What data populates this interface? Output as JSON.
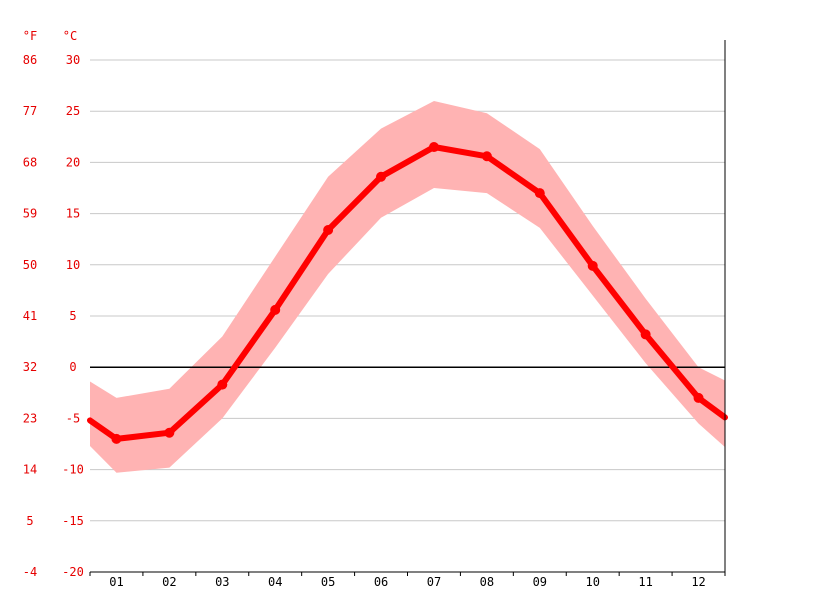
{
  "chart_data": {
    "type": "line",
    "title": "",
    "xlabel": "",
    "ylabel_left": "°F",
    "ylabel_right": "°C",
    "categories": [
      "01",
      "02",
      "03",
      "04",
      "05",
      "06",
      "07",
      "08",
      "09",
      "10",
      "11",
      "12"
    ],
    "ylim": [
      -20,
      30
    ],
    "y_ticks_c": [
      "30",
      "25",
      "20",
      "15",
      "10",
      "5",
      "0",
      "-5",
      "-10",
      "-15",
      "-20"
    ],
    "y_ticks_f": [
      "86",
      "77",
      "68",
      "59",
      "50",
      "41",
      "32",
      "23",
      "14",
      "5",
      "-4"
    ],
    "grid": true,
    "legend": "none",
    "series": [
      {
        "values": [
          -7.0,
          -6.4,
          -1.7,
          5.6,
          13.4,
          18.6,
          21.5,
          20.6,
          17.0,
          9.9,
          3.2,
          -3.0
        ]
      }
    ],
    "band_upper": [
      -3.0,
      -2.1,
      3.0,
      10.8,
      18.6,
      23.3,
      26.0,
      24.8,
      21.3,
      13.8,
      6.7,
      0.0
    ],
    "band_lower": [
      -10.3,
      -9.8,
      -5.0,
      1.9,
      9.1,
      14.6,
      17.5,
      17.0,
      13.6,
      7.0,
      0.4,
      -5.5
    ],
    "edge_left": {
      "avg": -5.2,
      "upper": -1.4,
      "lower": -7.7
    },
    "edge_right": {
      "avg": -4.9,
      "upper": -1.3,
      "lower": -7.8
    },
    "colors": {
      "line": "#ff0000",
      "band": "#ffb3b3",
      "tick_labels": "#e60000",
      "grid": "#c8c8c8"
    }
  }
}
